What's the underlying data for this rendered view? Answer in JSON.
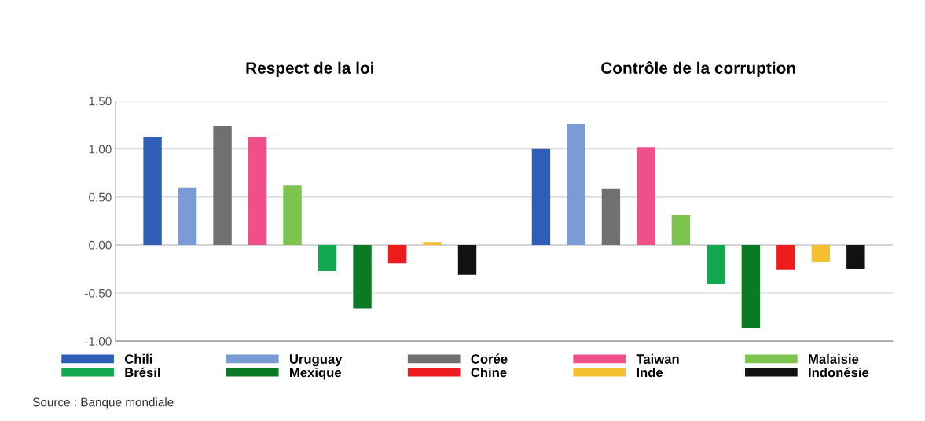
{
  "chart_data": {
    "type": "bar",
    "categories": [
      "Respect de la loi",
      "Contrôle de la corruption"
    ],
    "series": [
      {
        "name": "Chili",
        "color": "#2e5fb8",
        "values": [
          1.12,
          1.0
        ]
      },
      {
        "name": "Uruguay",
        "color": "#7b9bd6",
        "values": [
          0.6,
          1.26
        ]
      },
      {
        "name": "Corée",
        "color": "#707070",
        "values": [
          1.24,
          0.59
        ]
      },
      {
        "name": "Taiwan",
        "color": "#f0508a",
        "values": [
          1.12,
          1.02
        ]
      },
      {
        "name": "Malaisie",
        "color": "#7cc44e",
        "values": [
          0.62,
          0.31
        ]
      },
      {
        "name": "Brésil",
        "color": "#12a84f",
        "values": [
          -0.27,
          -0.41
        ]
      },
      {
        "name": "Mexique",
        "color": "#0a7a25",
        "values": [
          -0.66,
          -0.86
        ]
      },
      {
        "name": "Chine",
        "color": "#ee1c1c",
        "values": [
          -0.19,
          -0.26
        ]
      },
      {
        "name": "Inde",
        "color": "#f5c030",
        "values": [
          0.03,
          -0.18
        ]
      },
      {
        "name": "Indonésie",
        "color": "#111111",
        "values": [
          -0.31,
          -0.25
        ]
      }
    ],
    "ylim": [
      -1.0,
      1.5
    ],
    "yticks": [
      {
        "value": -1.0,
        "label": "-1.00"
      },
      {
        "value": -0.5,
        "label": "-0.50"
      },
      {
        "value": 0,
        "label": "0.00"
      },
      {
        "value": 0.5,
        "label": "0.50"
      },
      {
        "value": 1.0,
        "label": "1.00"
      },
      {
        "value": 1.5,
        "label": "1.50"
      }
    ],
    "grid": "y",
    "legend": "bottom",
    "annotations": [
      "Source : Banque mondiale"
    ]
  }
}
